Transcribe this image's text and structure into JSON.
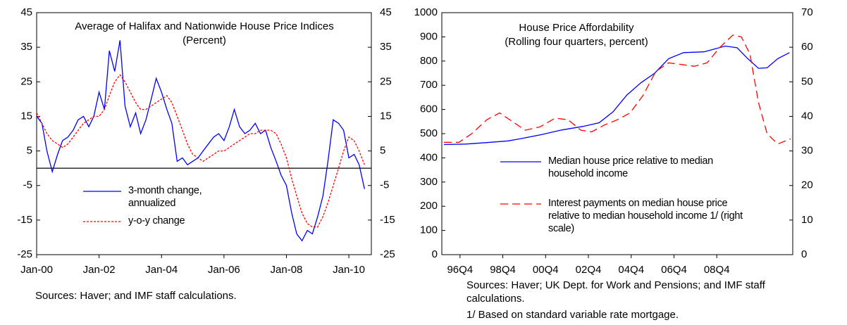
{
  "chart_data": [
    {
      "type": "line",
      "title": "Average of Halifax and Nationwide House Price Indices",
      "subtitle": "(Percent)",
      "x": [
        2000,
        2000.17,
        2000.33,
        2000.5,
        2000.67,
        2000.83,
        2001,
        2001.17,
        2001.33,
        2001.5,
        2001.67,
        2001.83,
        2002,
        2002.17,
        2002.33,
        2002.5,
        2002.67,
        2002.83,
        2003,
        2003.17,
        2003.33,
        2003.5,
        2003.67,
        2003.83,
        2004,
        2004.17,
        2004.33,
        2004.5,
        2004.67,
        2004.83,
        2005,
        2005.17,
        2005.33,
        2005.5,
        2005.67,
        2005.83,
        2006,
        2006.17,
        2006.33,
        2006.5,
        2006.67,
        2006.83,
        2007,
        2007.17,
        2007.33,
        2007.5,
        2007.67,
        2007.83,
        2008,
        2008.17,
        2008.33,
        2008.5,
        2008.67,
        2008.83,
        2009,
        2009.17,
        2009.33,
        2009.5,
        2009.67,
        2009.83,
        2010,
        2010.17,
        2010.33,
        2010.5
      ],
      "series": [
        {
          "name": "3-month change, annualized",
          "color": "#0000ff",
          "line_style": "solid",
          "values": [
            15,
            13,
            5,
            -1,
            4,
            8,
            9,
            11,
            14,
            15,
            12,
            15,
            22,
            17,
            34,
            28,
            37,
            18,
            12,
            16,
            10,
            14,
            20,
            26,
            22,
            17,
            13,
            2,
            3,
            1,
            2,
            3,
            5,
            7,
            9,
            10,
            8,
            12,
            17,
            12,
            10,
            11,
            13,
            10,
            11,
            6,
            2,
            -2,
            -5,
            -13,
            -19,
            -21,
            -18,
            -19,
            -14,
            -8,
            2,
            14,
            13,
            11,
            3,
            4,
            1,
            -6
          ]
        },
        {
          "name": "y-o-y change",
          "color": "#ff0000",
          "line_style": "dotted",
          "values": [
            16,
            13,
            10,
            8,
            7,
            6,
            7,
            9,
            11,
            13,
            14,
            15,
            15,
            17,
            21,
            25,
            27,
            25,
            22,
            19,
            17,
            17,
            18,
            19,
            20,
            21,
            19,
            15,
            11,
            7,
            4,
            3,
            2,
            3,
            4,
            5,
            5,
            6,
            7,
            8,
            9,
            10,
            10,
            11,
            11,
            11,
            10,
            7,
            3,
            -3,
            -8,
            -13,
            -16,
            -17,
            -17,
            -14,
            -10,
            -5,
            0,
            5,
            9,
            8,
            5,
            1
          ]
        }
      ],
      "xlim": [
        2000,
        2010.72
      ],
      "xticks": [
        {
          "value": 2000,
          "label": "Jan-00"
        },
        {
          "value": 2002,
          "label": "Jan-02"
        },
        {
          "value": 2004,
          "label": "Jan-04"
        },
        {
          "value": 2006,
          "label": "Jan-06"
        },
        {
          "value": 2008,
          "label": "Jan-08"
        },
        {
          "value": 2010,
          "label": "Jan-10"
        }
      ],
      "ylim": [
        -25,
        45
      ],
      "yticks": [
        -25,
        -15,
        -5,
        5,
        15,
        25,
        35,
        45
      ],
      "y2lim": [
        -25,
        45
      ],
      "y2ticks": [
        -25,
        -15,
        -5,
        5,
        15,
        25,
        35,
        45
      ],
      "zero_line": true,
      "note": "Sources: Haver; and IMF staff calculations."
    },
    {
      "type": "line",
      "title": "House Price Affordability",
      "subtitle": "(Rolling four quarters, percent)",
      "series": [
        {
          "name": "Median house price relative to median household income",
          "color": "#0000ff",
          "line_style": "solid",
          "axis": "y",
          "x": [
            1996,
            1997,
            1998,
            1999,
            1999.5,
            2000.5,
            2001.5,
            2002.5,
            2003.25,
            2003.9,
            2004.55,
            2005.2,
            2005.85,
            2006.5,
            2007.2,
            2008.15,
            2008.65,
            2009.15,
            2009.7,
            2010.2,
            2010.7,
            2011.1,
            2011.6,
            2012.15
          ],
          "values": [
            455,
            457,
            463,
            470,
            478,
            495,
            515,
            530,
            545,
            590,
            660,
            710,
            750,
            810,
            835,
            838,
            850,
            862,
            855,
            810,
            770,
            772,
            810,
            835
          ]
        },
        {
          "name": "Interest payments on median house price relative to median household income 1/ (right scale)",
          "color": "#ff0000",
          "line_style": "dashed",
          "axis": "y2",
          "x": [
            1996,
            1996.7,
            1997.3,
            1998,
            1998.6,
            1999.2,
            1999.8,
            2000.5,
            2001.2,
            2001.8,
            2002.4,
            2002.9,
            2003.5,
            2004.1,
            2004.7,
            2005.3,
            2005.9,
            2006.5,
            2007.1,
            2007.7,
            2008.3,
            2008.9,
            2009.5,
            2009.9,
            2010.3,
            2010.7,
            2011.1,
            2011.6,
            2012.2
          ],
          "values": [
            32.5,
            32.5,
            35,
            39,
            41,
            38.5,
            36,
            37,
            39.5,
            39,
            36,
            35.5,
            37.5,
            39,
            41,
            46,
            53,
            55.5,
            55,
            54.5,
            55.5,
            60,
            63.5,
            63,
            58,
            44,
            35,
            32,
            33.5
          ]
        }
      ],
      "xlim": [
        1995.9,
        2012.3
      ],
      "xticks": [
        {
          "value": 1996.75,
          "label": "96Q4"
        },
        {
          "value": 1998.75,
          "label": "98Q4"
        },
        {
          "value": 2000.75,
          "label": "00Q4"
        },
        {
          "value": 2002.75,
          "label": "02Q4"
        },
        {
          "value": 2004.75,
          "label": "04Q4"
        },
        {
          "value": 2006.75,
          "label": "06Q4"
        },
        {
          "value": 2008.75,
          "label": "08Q4"
        }
      ],
      "ylim": [
        0,
        1000
      ],
      "yticks": [
        0,
        100,
        200,
        300,
        400,
        500,
        600,
        700,
        800,
        900,
        1000
      ],
      "y2lim": [
        0,
        70
      ],
      "y2ticks": [
        0,
        10,
        20,
        30,
        40,
        50,
        60,
        70
      ],
      "note": "Sources: Haver; UK Dept. for Work and Pensions; and IMF staff calculations.",
      "footnote": "1/ Based on standard variable rate mortgage."
    }
  ]
}
